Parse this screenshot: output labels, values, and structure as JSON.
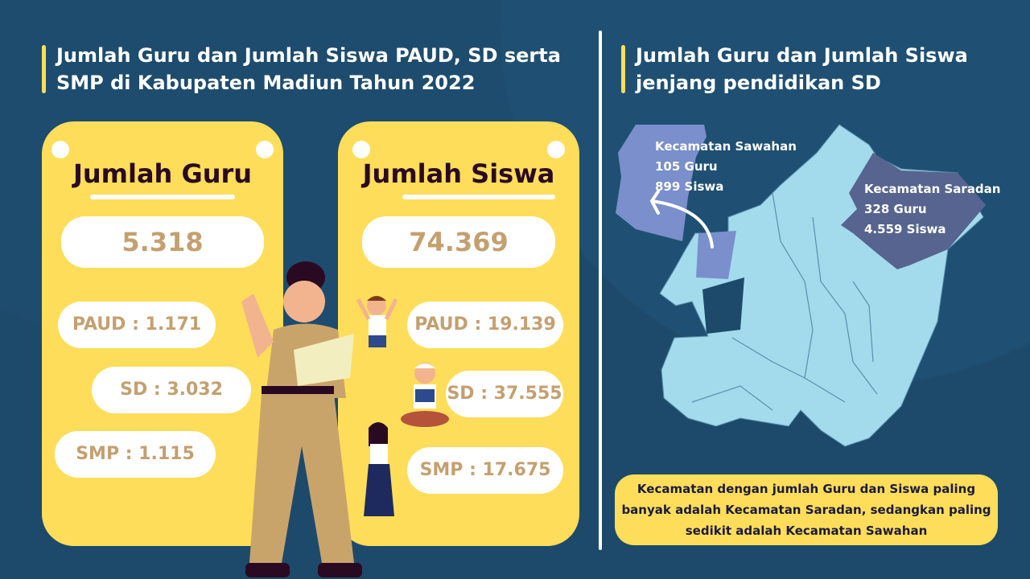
{
  "left": {
    "title": "Jumlah Guru dan Jumlah Siswa PAUD, SD serta SMP di Kabupaten Madiun Tahun 2022",
    "guru": {
      "heading": "Jumlah Guru",
      "total": "5.318",
      "paud": "PAUD : 1.171",
      "sd": "SD : 3.032",
      "smp": "SMP : 1.115"
    },
    "siswa": {
      "heading": "Jumlah Siswa",
      "total": "74.369",
      "paud": "PAUD : 19.139",
      "sd": "SD : 37.555",
      "smp": "SMP : 17.675"
    }
  },
  "right": {
    "title": "Jumlah Guru dan Jumlah Siswa jenjang pendidikan SD",
    "sawahan": {
      "name": "Kecamatan Sawahan",
      "guru": "105 Guru",
      "siswa": "899 Siswa"
    },
    "saradan": {
      "name": "Kecamatan Saradan",
      "guru": "328 Guru",
      "siswa": "4.559 Siswa"
    },
    "note": "Kecamatan dengan jumlah Guru dan Siswa paling banyak adalah Kecamatan Saradan, sedangkan paling sedikit adalah Kecamatan Sawahan"
  },
  "colors": {
    "background": "#1d4a6b",
    "card": "#fedd5a",
    "number": "#c4a070",
    "map": "#a3dbec",
    "sawahan": "#7a8fcb",
    "saradan": "#56648f"
  }
}
